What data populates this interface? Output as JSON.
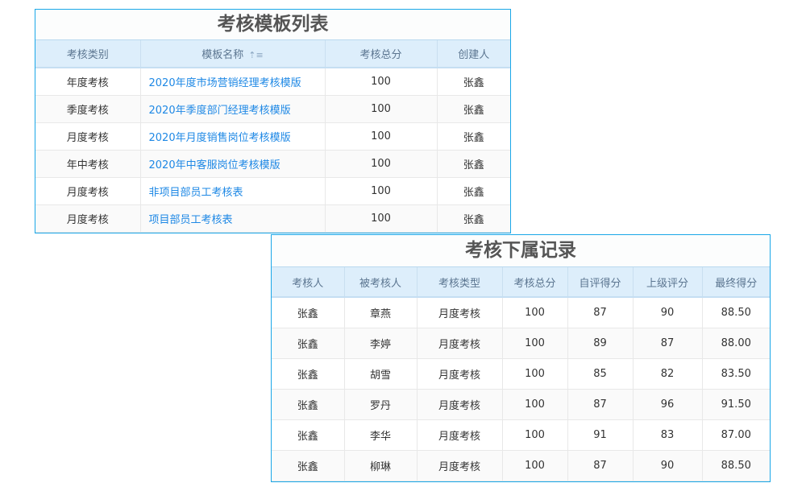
{
  "template_panel": {
    "title": "考核模板列表",
    "columns": [
      "考核类别",
      "模板名称",
      "考核总分",
      "创建人"
    ],
    "sort_icon": "⇡≡",
    "rows": [
      {
        "category": "年度考核",
        "name": "2020年度市场营销经理考核模版",
        "total": "100",
        "creator": "张鑫"
      },
      {
        "category": "季度考核",
        "name": "2020年季度部门经理考核模版",
        "total": "100",
        "creator": "张鑫"
      },
      {
        "category": "月度考核",
        "name": "2020年月度销售岗位考核模版",
        "total": "100",
        "creator": "张鑫"
      },
      {
        "category": "年中考核",
        "name": "2020年中客服岗位考核模版",
        "total": "100",
        "creator": "张鑫"
      },
      {
        "category": "月度考核",
        "name": "非项目部员工考核表",
        "total": "100",
        "creator": "张鑫"
      },
      {
        "category": "月度考核",
        "name": "项目部员工考核表",
        "total": "100",
        "creator": "张鑫"
      }
    ]
  },
  "records_panel": {
    "title": "考核下属记录",
    "columns": [
      "考核人",
      "被考核人",
      "考核类型",
      "考核总分",
      "自评得分",
      "上级评分",
      "最终得分"
    ],
    "rows": [
      [
        "张鑫",
        "章燕",
        "月度考核",
        "100",
        "87",
        "90",
        "88.50"
      ],
      [
        "张鑫",
        "李婷",
        "月度考核",
        "100",
        "89",
        "87",
        "88.00"
      ],
      [
        "张鑫",
        "胡雪",
        "月度考核",
        "100",
        "85",
        "82",
        "83.50"
      ],
      [
        "张鑫",
        "罗丹",
        "月度考核",
        "100",
        "87",
        "96",
        "91.50"
      ],
      [
        "张鑫",
        "李华",
        "月度考核",
        "100",
        "91",
        "83",
        "87.00"
      ],
      [
        "张鑫",
        "柳琳",
        "月度考核",
        "100",
        "87",
        "90",
        "88.50"
      ]
    ]
  },
  "colors": {
    "border": "#1aa7e8",
    "header_bg": "#ddeefb",
    "link": "#1e88e5"
  }
}
